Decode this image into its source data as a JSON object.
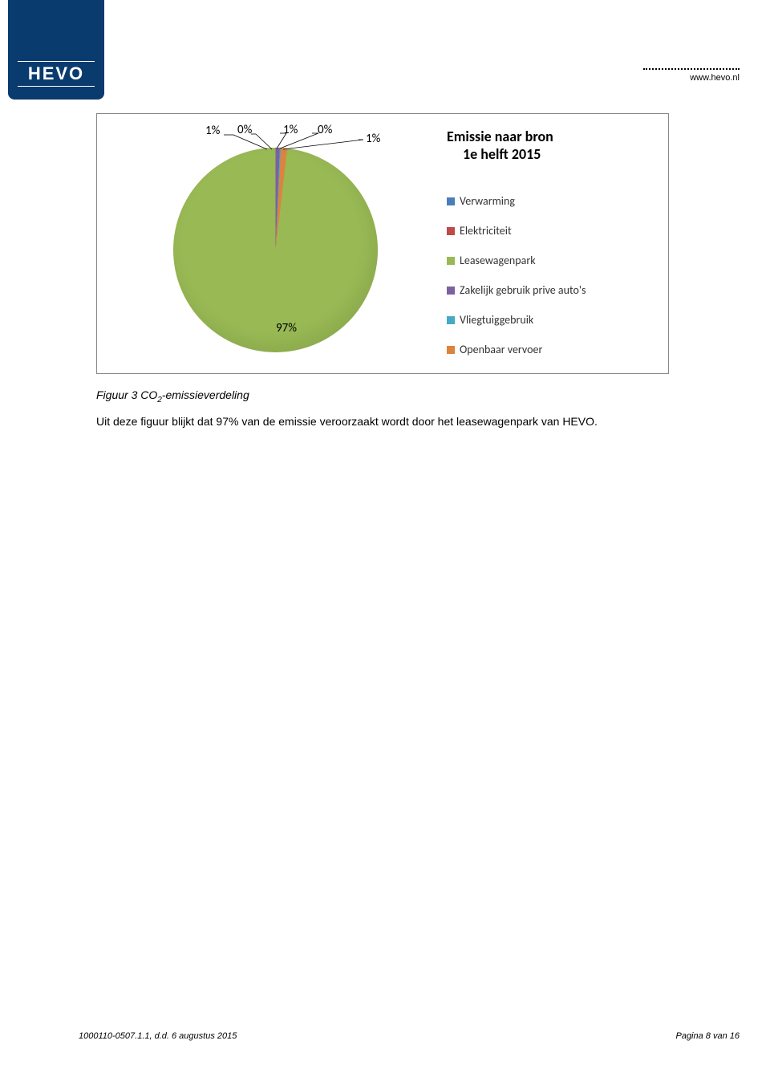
{
  "header": {
    "logo_text": "HEVO",
    "url": "www.hevo.nl"
  },
  "chart": {
    "type": "pie",
    "title_line1": "Emissie naar bron",
    "title_line2": "1e helft 2015",
    "title_fontsize": 18,
    "background_color": "#ffffff",
    "border_color": "#888888",
    "label_fontsize": 15,
    "legend_fontsize": 14,
    "slices": [
      {
        "label": "Verwarming",
        "value": 1,
        "display": "1%",
        "color": "#4a7ebb"
      },
      {
        "label": "Elektriciteit",
        "value": 0,
        "display": "0%",
        "color": "#be4b48"
      },
      {
        "label": "Leasewagenpark",
        "value": 97,
        "display": "97%",
        "color": "#98b954"
      },
      {
        "label": "Zakelijk gebruik prive auto's",
        "value": 1,
        "display": "1%",
        "color": "#7d60a0"
      },
      {
        "label": "Vliegtuiggebruik",
        "value": 0,
        "display": "0%",
        "color": "#46aac5"
      },
      {
        "label": "Openbaar vervoer",
        "value": 1,
        "display": "1%",
        "color": "#db843d"
      }
    ],
    "callout_labels": {
      "l1": "1%",
      "l2": "0%",
      "l3": "1%",
      "l4": "0%",
      "l5": "1%",
      "l97": "97%"
    }
  },
  "caption": {
    "prefix": "Figuur 3 CO",
    "sub": "2",
    "suffix": "-emissieverdeling"
  },
  "body": {
    "text": "Uit deze figuur blijkt dat 97% van de emissie veroorzaakt wordt door het leasewagenpark van HEVO."
  },
  "footer": {
    "left": "1000110-0507.1.1, d.d. 6 augustus 2015",
    "right": "Pagina 8 van 16"
  }
}
